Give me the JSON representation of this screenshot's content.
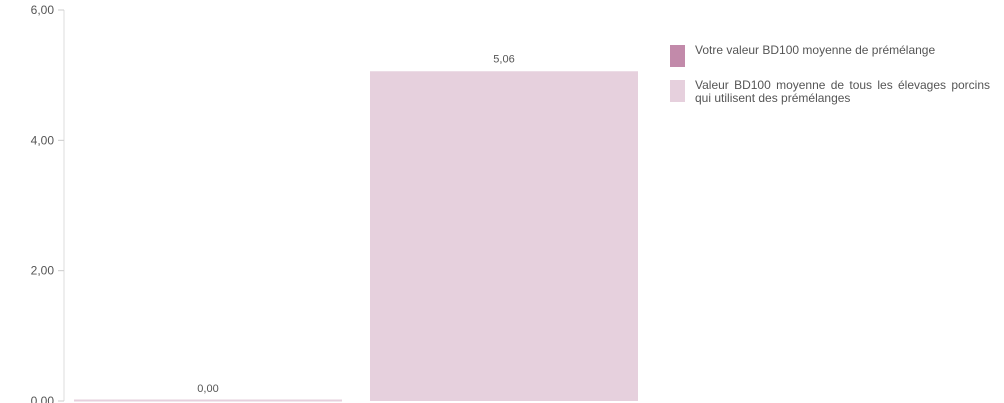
{
  "chart_data": {
    "type": "bar",
    "categories": [
      "",
      ""
    ],
    "series": [
      {
        "name": "Votre valeur BD100 moyenne de prémélange",
        "color": "#c28aaa",
        "values": [
          0.0,
          null
        ]
      },
      {
        "name": "Valeur BD100 moyenne de tous les élevages porcins qui utilisent des prémélanges",
        "color": "#e6d0dd",
        "values": [
          null,
          5.06
        ]
      }
    ],
    "data_labels": [
      "0,00",
      "5,06"
    ],
    "y_ticks": [
      "0,00",
      "2,00",
      "4,00",
      "6,00"
    ],
    "ylim": [
      0,
      6
    ],
    "title": "",
    "xlabel": "",
    "ylabel": "",
    "legend_position": "right",
    "grid": false
  }
}
